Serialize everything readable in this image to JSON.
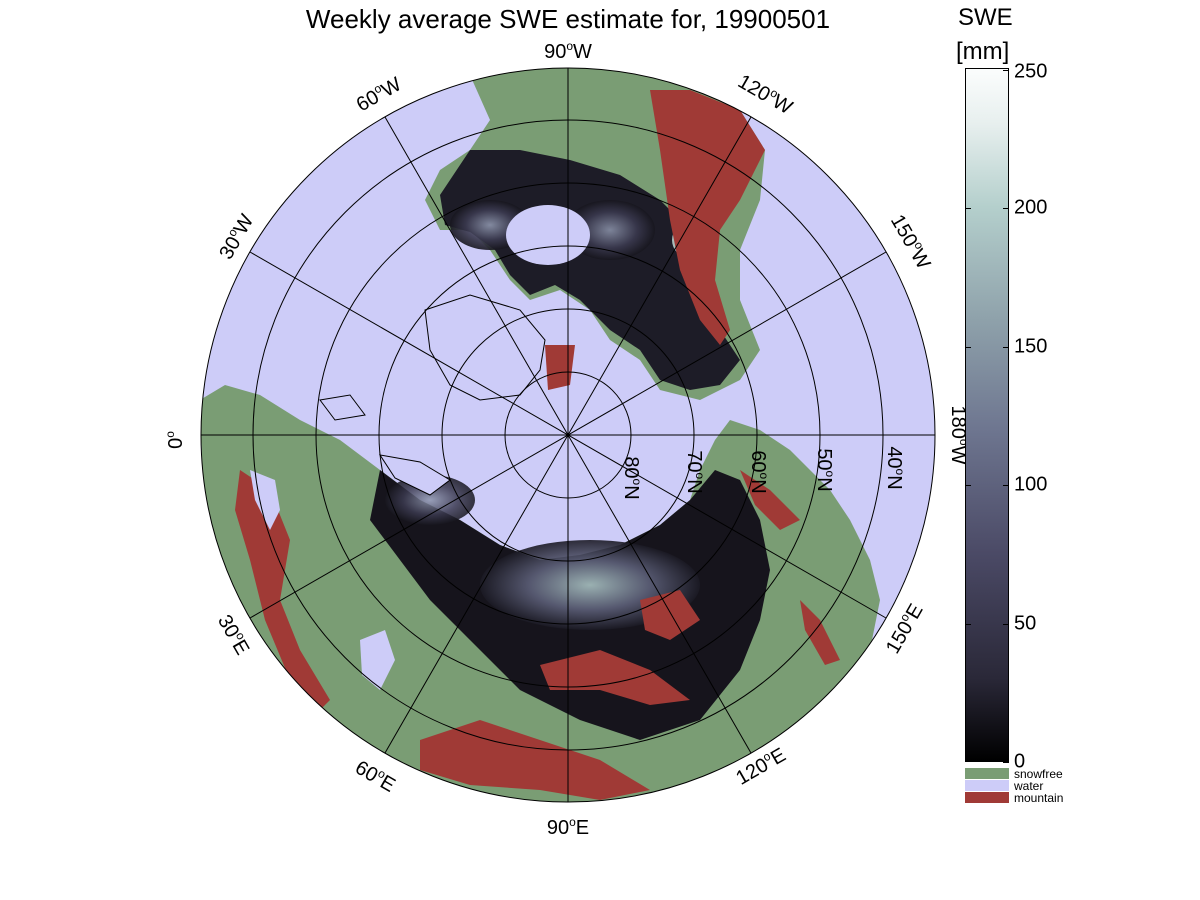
{
  "title": "Weekly average SWE estimate for, 19900501",
  "colorbar": {
    "title": "SWE",
    "unit": "[mm]",
    "ticks": [
      "0",
      "50",
      "100",
      "150",
      "200",
      "250"
    ],
    "range": [
      0,
      250
    ]
  },
  "legend": [
    {
      "label": "snowfree",
      "color": "#7a9d74"
    },
    {
      "label": "water",
      "color": "#cdccf8"
    },
    {
      "label": "mountain",
      "color": "#a03a36"
    }
  ],
  "map": {
    "ocean_color": "#cdccf8",
    "land_color": "#7a9d74",
    "mountain_color": "#a03a36",
    "snow_dark_color": "#16141c",
    "longitude_labels": [
      {
        "deg": "90",
        "hemi": "W"
      },
      {
        "deg": "120",
        "hemi": "W"
      },
      {
        "deg": "150",
        "hemi": "W"
      },
      {
        "deg": "180",
        "hemi": "W"
      },
      {
        "deg": "150",
        "hemi": "E"
      },
      {
        "deg": "120",
        "hemi": "E"
      },
      {
        "deg": "90",
        "hemi": "E"
      },
      {
        "deg": "60",
        "hemi": "E"
      },
      {
        "deg": "30",
        "hemi": "E"
      },
      {
        "deg": "0",
        "hemi": ""
      },
      {
        "deg": "30",
        "hemi": "W"
      },
      {
        "deg": "60",
        "hemi": "W"
      }
    ],
    "latitude_labels": [
      {
        "deg": "80",
        "hemi": "N"
      },
      {
        "deg": "70",
        "hemi": "N"
      },
      {
        "deg": "60",
        "hemi": "N"
      },
      {
        "deg": "50",
        "hemi": "N"
      },
      {
        "deg": "40",
        "hemi": "N"
      }
    ]
  }
}
